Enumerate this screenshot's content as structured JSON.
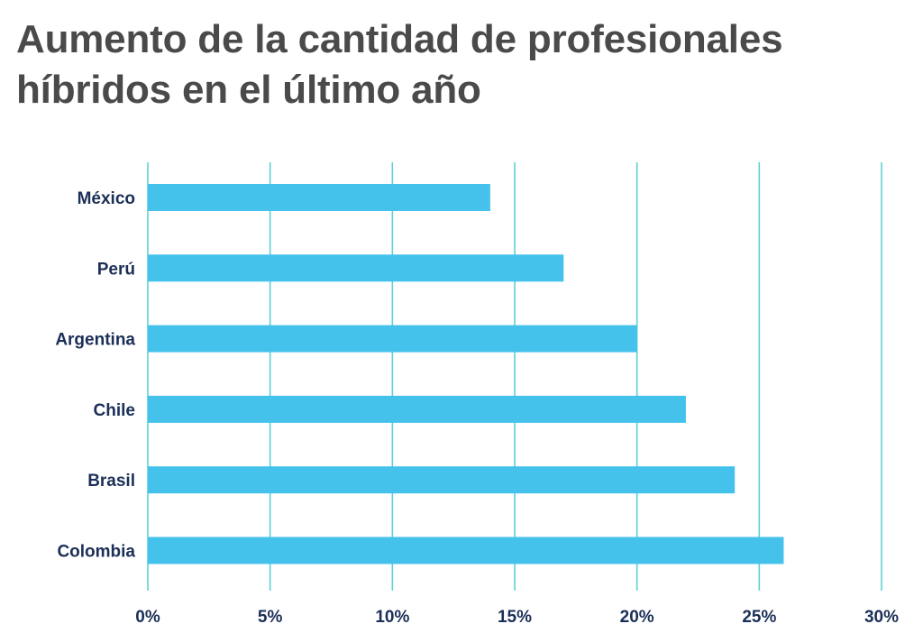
{
  "chart_data": {
    "type": "bar",
    "orientation": "horizontal",
    "title": "Aumento de la cantidad de profesionales híbridos en el último año",
    "categories": [
      "México",
      "Perú",
      "Argentina",
      "Chile",
      "Brasil",
      "Colombia"
    ],
    "values": [
      14,
      17,
      20,
      22,
      24,
      26
    ],
    "xlim": [
      0,
      30
    ],
    "xticks": [
      0,
      5,
      10,
      15,
      20,
      25,
      30
    ],
    "xtick_labels": [
      "0%",
      "5%",
      "10%",
      "15%",
      "20%",
      "25%",
      "30%"
    ],
    "xlabel": "",
    "ylabel": "",
    "grid": true,
    "legend": "none",
    "colors": {
      "bar": "#44c2ec",
      "grid": "#5fd0d4",
      "label": "#1b2f57",
      "title": "#4a4a4a"
    }
  }
}
